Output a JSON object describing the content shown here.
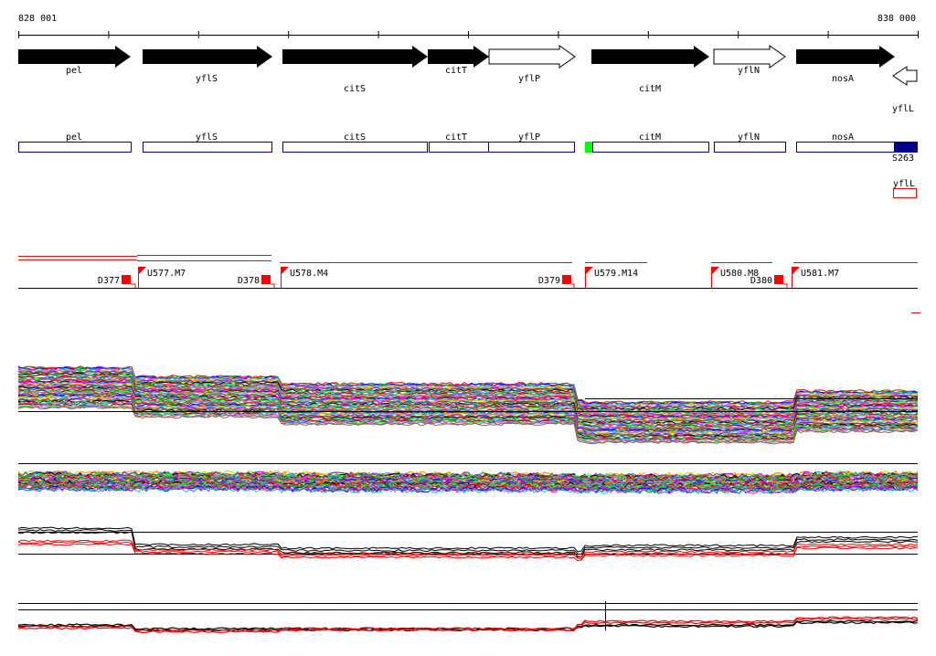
{
  "coords": {
    "start": "828 001",
    "end": "838 000"
  },
  "genes": [
    {
      "name": "pel",
      "filled": true
    },
    {
      "name": "yflS",
      "filled": true
    },
    {
      "name": "citS",
      "filled": true
    },
    {
      "name": "citT",
      "filled": true
    },
    {
      "name": "yflP",
      "filled": false
    },
    {
      "name": "citM",
      "filled": true
    },
    {
      "name": "yflN",
      "filled": false
    },
    {
      "name": "nosA",
      "filled": true
    },
    {
      "name": "yflL",
      "filled": false,
      "reverse": true
    }
  ],
  "gene_boxes": [
    "pel",
    "yflS",
    "citS",
    "citT",
    "yflP",
    "citM",
    "yflN",
    "nosA"
  ],
  "feature_labels": {
    "s263": "S263",
    "yflL_small": "yflL"
  },
  "segments": [
    {
      "label": "D377"
    },
    {
      "label": "U577.M7"
    },
    {
      "label": "D378"
    },
    {
      "label": "U578.M4"
    },
    {
      "label": "D379"
    },
    {
      "label": "U579.M14"
    },
    {
      "label": "U580.M8"
    },
    {
      "label": "D380"
    },
    {
      "label": "U581.M7"
    }
  ],
  "colors": {
    "gene_box": "#00008b",
    "highlight_green": "#00ff00",
    "feature_blue": "#00008b",
    "marker_red": "#ff0000"
  }
}
